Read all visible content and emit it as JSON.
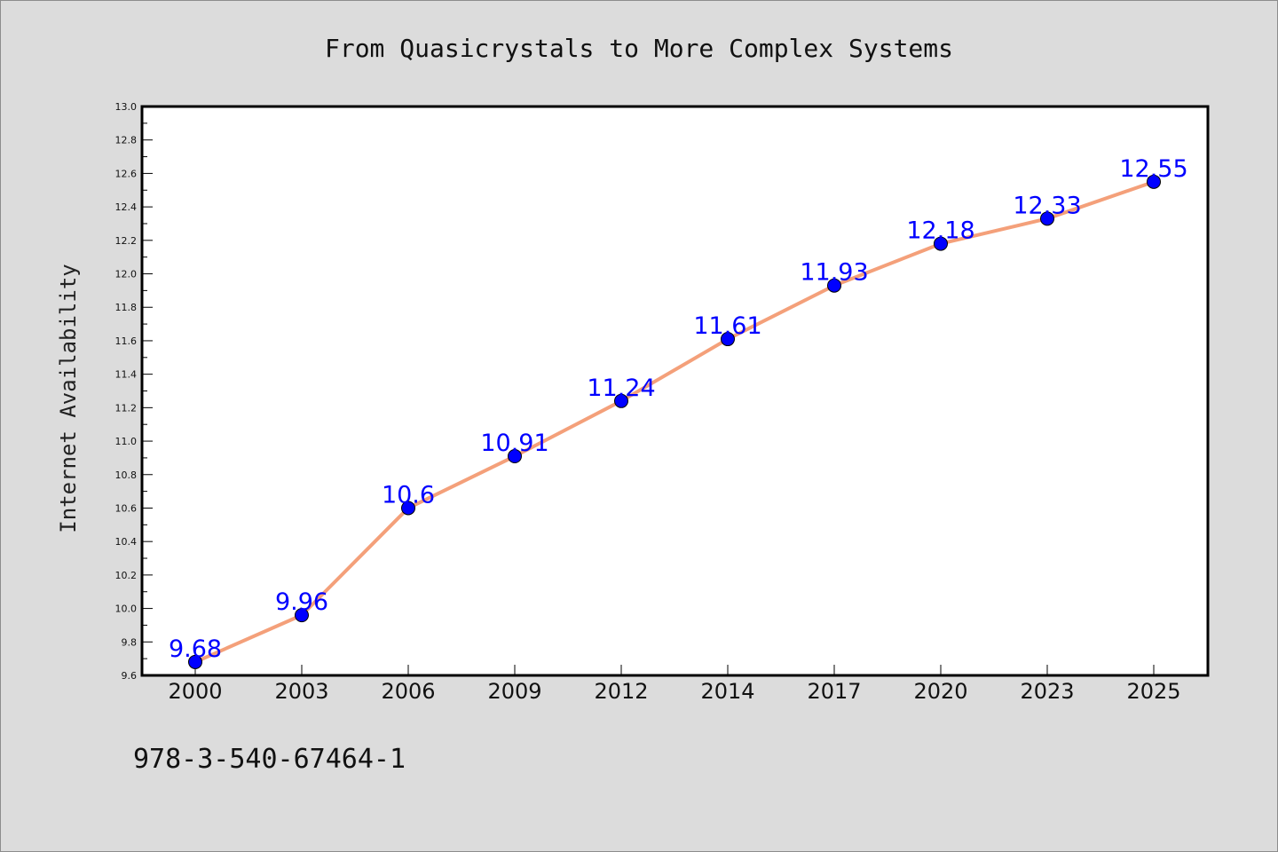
{
  "chart_data": {
    "type": "line",
    "title": "From Quasicrystals to More Complex Systems",
    "xlabel": "",
    "ylabel": "Internet Availability",
    "categories": [
      "2000",
      "2003",
      "2006",
      "2009",
      "2012",
      "2014",
      "2017",
      "2020",
      "2023",
      "2025"
    ],
    "values": [
      9.68,
      9.96,
      10.6,
      10.91,
      11.24,
      11.61,
      11.93,
      12.18,
      12.33,
      12.55
    ],
    "data_labels": [
      "9.68",
      "9.96",
      "10.6",
      "10.91",
      "11.24",
      "11.61",
      "11.93",
      "12.18",
      "12.33",
      "12.55"
    ],
    "ylim": [
      9.6,
      13.0
    ],
    "yticks": [
      "9.6",
      "9.8",
      "10.0",
      "10.2",
      "10.4",
      "10.6",
      "10.8",
      "11.0",
      "11.2",
      "11.4",
      "11.6",
      "11.8",
      "12.0",
      "12.2",
      "12.4",
      "12.6",
      "12.8",
      "13.0"
    ],
    "grid": false,
    "legend": "none",
    "colors": {
      "line": "#f4a07a",
      "marker": "#0000ff",
      "data_label": "#0000ff",
      "background": "#dcdcdc",
      "plot_background": "#ffffff"
    }
  },
  "footnote": "978-3-540-67464-1"
}
